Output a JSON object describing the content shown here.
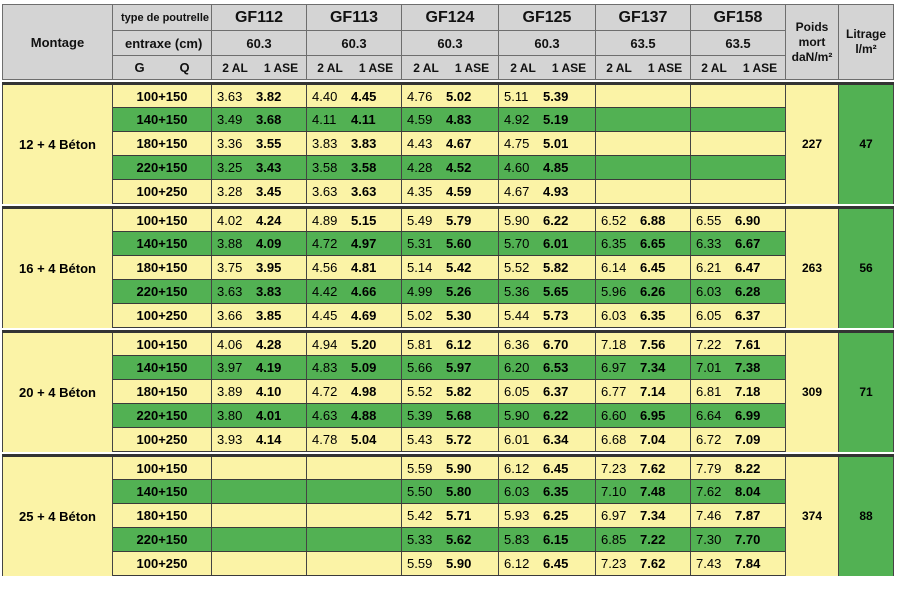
{
  "header": {
    "montage_label": "Montage",
    "type_label": "type de poutrelle",
    "entraxe_label": "entraxe (cm)",
    "g_label": "G",
    "q_label": "Q",
    "al_label": "2 AL",
    "ase_label": "1 ASE",
    "poids_label": "Poids\nmort\ndaN/m²",
    "litrage_label": "Litrage\nl/m²",
    "models": [
      {
        "name": "GF112",
        "entraxe": "60.3"
      },
      {
        "name": "GF113",
        "entraxe": "60.3"
      },
      {
        "name": "GF124",
        "entraxe": "60.3"
      },
      {
        "name": "GF125",
        "entraxe": "60.3"
      },
      {
        "name": "GF137",
        "entraxe": "63.5"
      },
      {
        "name": "GF158",
        "entraxe": "63.5"
      }
    ]
  },
  "sections": [
    {
      "montage": "12 + 4 Béton",
      "poids": "227",
      "litrage": "47",
      "rows": [
        {
          "gq": "100+150",
          "vals": [
            [
              "3.63",
              "3.82"
            ],
            [
              "4.40",
              "4.45"
            ],
            [
              "4.76",
              "5.02"
            ],
            [
              "5.11",
              "5.39"
            ],
            [
              "",
              ""
            ],
            [
              "",
              ""
            ]
          ]
        },
        {
          "gq": "140+150",
          "vals": [
            [
              "3.49",
              "3.68"
            ],
            [
              "4.11",
              "4.11"
            ],
            [
              "4.59",
              "4.83"
            ],
            [
              "4.92",
              "5.19"
            ],
            [
              "",
              ""
            ],
            [
              "",
              ""
            ]
          ]
        },
        {
          "gq": "180+150",
          "vals": [
            [
              "3.36",
              "3.55"
            ],
            [
              "3.83",
              "3.83"
            ],
            [
              "4.43",
              "4.67"
            ],
            [
              "4.75",
              "5.01"
            ],
            [
              "",
              ""
            ],
            [
              "",
              ""
            ]
          ]
        },
        {
          "gq": "220+150",
          "vals": [
            [
              "3.25",
              "3.43"
            ],
            [
              "3.58",
              "3.58"
            ],
            [
              "4.28",
              "4.52"
            ],
            [
              "4.60",
              "4.85"
            ],
            [
              "",
              ""
            ],
            [
              "",
              ""
            ]
          ]
        },
        {
          "gq": "100+250",
          "vals": [
            [
              "3.28",
              "3.45"
            ],
            [
              "3.63",
              "3.63"
            ],
            [
              "4.35",
              "4.59"
            ],
            [
              "4.67",
              "4.93"
            ],
            [
              "",
              ""
            ],
            [
              "",
              ""
            ]
          ]
        }
      ]
    },
    {
      "montage": "16 + 4 Béton",
      "poids": "263",
      "litrage": "56",
      "rows": [
        {
          "gq": "100+150",
          "vals": [
            [
              "4.02",
              "4.24"
            ],
            [
              "4.89",
              "5.15"
            ],
            [
              "5.49",
              "5.79"
            ],
            [
              "5.90",
              "6.22"
            ],
            [
              "6.52",
              "6.88"
            ],
            [
              "6.55",
              "6.90"
            ]
          ]
        },
        {
          "gq": "140+150",
          "vals": [
            [
              "3.88",
              "4.09"
            ],
            [
              "4.72",
              "4.97"
            ],
            [
              "5.31",
              "5.60"
            ],
            [
              "5.70",
              "6.01"
            ],
            [
              "6.35",
              "6.65"
            ],
            [
              "6.33",
              "6.67"
            ]
          ]
        },
        {
          "gq": "180+150",
          "vals": [
            [
              "3.75",
              "3.95"
            ],
            [
              "4.56",
              "4.81"
            ],
            [
              "5.14",
              "5.42"
            ],
            [
              "5.52",
              "5.82"
            ],
            [
              "6.14",
              "6.45"
            ],
            [
              "6.21",
              "6.47"
            ]
          ]
        },
        {
          "gq": "220+150",
          "vals": [
            [
              "3.63",
              "3.83"
            ],
            [
              "4.42",
              "4.66"
            ],
            [
              "4.99",
              "5.26"
            ],
            [
              "5.36",
              "5.65"
            ],
            [
              "5.96",
              "6.26"
            ],
            [
              "6.03",
              "6.28"
            ]
          ]
        },
        {
          "gq": "100+250",
          "vals": [
            [
              "3.66",
              "3.85"
            ],
            [
              "4.45",
              "4.69"
            ],
            [
              "5.02",
              "5.30"
            ],
            [
              "5.44",
              "5.73"
            ],
            [
              "6.03",
              "6.35"
            ],
            [
              "6.05",
              "6.37"
            ]
          ]
        }
      ]
    },
    {
      "montage": "20 + 4 Béton",
      "poids": "309",
      "litrage": "71",
      "rows": [
        {
          "gq": "100+150",
          "vals": [
            [
              "4.06",
              "4.28"
            ],
            [
              "4.94",
              "5.20"
            ],
            [
              "5.81",
              "6.12"
            ],
            [
              "6.36",
              "6.70"
            ],
            [
              "7.18",
              "7.56"
            ],
            [
              "7.22",
              "7.61"
            ]
          ]
        },
        {
          "gq": "140+150",
          "vals": [
            [
              "3.97",
              "4.19"
            ],
            [
              "4.83",
              "5.09"
            ],
            [
              "5.66",
              "5.97"
            ],
            [
              "6.20",
              "6.53"
            ],
            [
              "6.97",
              "7.34"
            ],
            [
              "7.01",
              "7.38"
            ]
          ]
        },
        {
          "gq": "180+150",
          "vals": [
            [
              "3.89",
              "4.10"
            ],
            [
              "4.72",
              "4.98"
            ],
            [
              "5.52",
              "5.82"
            ],
            [
              "6.05",
              "6.37"
            ],
            [
              "6.77",
              "7.14"
            ],
            [
              "6.81",
              "7.18"
            ]
          ]
        },
        {
          "gq": "220+150",
          "vals": [
            [
              "3.80",
              "4.01"
            ],
            [
              "4.63",
              "4.88"
            ],
            [
              "5.39",
              "5.68"
            ],
            [
              "5.90",
              "6.22"
            ],
            [
              "6.60",
              "6.95"
            ],
            [
              "6.64",
              "6.99"
            ]
          ]
        },
        {
          "gq": "100+250",
          "vals": [
            [
              "3.93",
              "4.14"
            ],
            [
              "4.78",
              "5.04"
            ],
            [
              "5.43",
              "5.72"
            ],
            [
              "6.01",
              "6.34"
            ],
            [
              "6.68",
              "7.04"
            ],
            [
              "6.72",
              "7.09"
            ]
          ]
        }
      ]
    },
    {
      "montage": "25 + 4 Béton",
      "poids": "374",
      "litrage": "88",
      "rows": [
        {
          "gq": "100+150",
          "vals": [
            [
              "",
              ""
            ],
            [
              "",
              ""
            ],
            [
              "5.59",
              "5.90"
            ],
            [
              "6.12",
              "6.45"
            ],
            [
              "7.23",
              "7.62"
            ],
            [
              "7.79",
              "8.22"
            ]
          ]
        },
        {
          "gq": "140+150",
          "vals": [
            [
              "",
              ""
            ],
            [
              "",
              ""
            ],
            [
              "5.50",
              "5.80"
            ],
            [
              "6.03",
              "6.35"
            ],
            [
              "7.10",
              "7.48"
            ],
            [
              "7.62",
              "8.04"
            ]
          ]
        },
        {
          "gq": "180+150",
          "vals": [
            [
              "",
              ""
            ],
            [
              "",
              ""
            ],
            [
              "5.42",
              "5.71"
            ],
            [
              "5.93",
              "6.25"
            ],
            [
              "6.97",
              "7.34"
            ],
            [
              "7.46",
              "7.87"
            ]
          ]
        },
        {
          "gq": "220+150",
          "vals": [
            [
              "",
              ""
            ],
            [
              "",
              ""
            ],
            [
              "5.33",
              "5.62"
            ],
            [
              "5.83",
              "6.15"
            ],
            [
              "6.85",
              "7.22"
            ],
            [
              "7.30",
              "7.70"
            ]
          ]
        },
        {
          "gq": "100+250",
          "vals": [
            [
              "",
              ""
            ],
            [
              "",
              ""
            ],
            [
              "5.59",
              "5.90"
            ],
            [
              "6.12",
              "6.45"
            ],
            [
              "7.23",
              "7.62"
            ],
            [
              "7.43",
              "7.84"
            ]
          ]
        }
      ]
    }
  ]
}
